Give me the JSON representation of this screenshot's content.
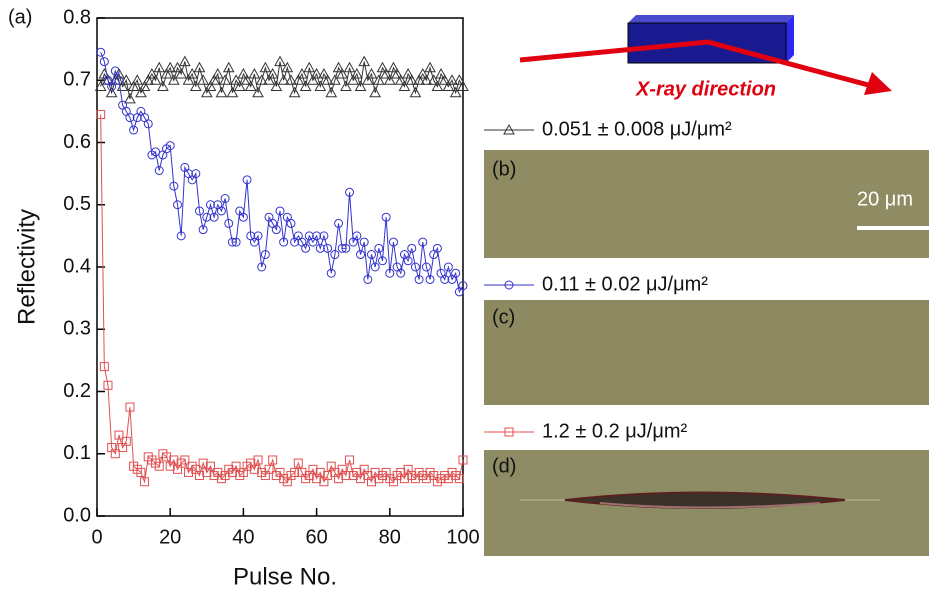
{
  "chart_data": {
    "type": "line",
    "title": "(a)",
    "xlabel": "Pulse No.",
    "ylabel": "Reflectivity",
    "xlim": [
      0,
      100
    ],
    "xticks": [
      0,
      20,
      40,
      60,
      80,
      100
    ],
    "ylim": [
      0,
      0.8
    ],
    "yticks": [
      {
        "value": 0,
        "label": "0.0"
      },
      0.1,
      0.2,
      0.3,
      0.4,
      0.5,
      0.6,
      0.7,
      0.8
    ],
    "annotation": "X-ray direction",
    "panel_labels": [
      "(b)",
      "(c)",
      "(d)"
    ],
    "scale_bar": "20 μm",
    "x": [
      1,
      2,
      3,
      4,
      5,
      6,
      7,
      8,
      9,
      10,
      11,
      12,
      13,
      14,
      15,
      16,
      17,
      18,
      19,
      20,
      21,
      22,
      23,
      24,
      25,
      26,
      27,
      28,
      29,
      30,
      31,
      32,
      33,
      34,
      35,
      36,
      37,
      38,
      39,
      40,
      41,
      42,
      43,
      44,
      45,
      46,
      47,
      48,
      49,
      50,
      51,
      52,
      53,
      54,
      55,
      56,
      57,
      58,
      59,
      60,
      61,
      62,
      63,
      64,
      65,
      66,
      67,
      68,
      69,
      70,
      71,
      72,
      73,
      74,
      75,
      76,
      77,
      78,
      79,
      80,
      81,
      82,
      83,
      84,
      85,
      86,
      87,
      88,
      89,
      90,
      91,
      92,
      93,
      94,
      95,
      96,
      97,
      98,
      99,
      100
    ],
    "series": [
      {
        "name": "0.051 ± 0.008 μJ/μm²",
        "color": "#333333",
        "marker": "triangle",
        "values": [
          0.69,
          0.71,
          0.7,
          0.68,
          0.7,
          0.71,
          0.69,
          0.7,
          0.67,
          0.69,
          0.7,
          0.68,
          0.69,
          0.7,
          0.71,
          0.7,
          0.72,
          0.69,
          0.71,
          0.72,
          0.7,
          0.72,
          0.71,
          0.73,
          0.7,
          0.71,
          0.69,
          0.72,
          0.7,
          0.68,
          0.69,
          0.7,
          0.71,
          0.68,
          0.7,
          0.72,
          0.68,
          0.7,
          0.69,
          0.71,
          0.7,
          0.69,
          0.71,
          0.68,
          0.7,
          0.72,
          0.7,
          0.71,
          0.69,
          0.73,
          0.7,
          0.72,
          0.7,
          0.68,
          0.7,
          0.71,
          0.69,
          0.72,
          0.7,
          0.71,
          0.69,
          0.71,
          0.7,
          0.68,
          0.7,
          0.72,
          0.71,
          0.69,
          0.72,
          0.7,
          0.71,
          0.69,
          0.73,
          0.7,
          0.71,
          0.68,
          0.7,
          0.72,
          0.71,
          0.7,
          0.72,
          0.71,
          0.7,
          0.69,
          0.71,
          0.7,
          0.68,
          0.7,
          0.71,
          0.7,
          0.72,
          0.7,
          0.69,
          0.71,
          0.7,
          0.69,
          0.7,
          0.68,
          0.7,
          0.69
        ]
      },
      {
        "name": "0.11 ± 0.02 μJ/μm²",
        "color": "#3333cc",
        "marker": "circle",
        "values": [
          0.745,
          0.73,
          0.7,
          0.69,
          0.715,
          0.7,
          0.66,
          0.65,
          0.64,
          0.62,
          0.64,
          0.65,
          0.64,
          0.63,
          0.58,
          0.585,
          0.555,
          0.58,
          0.59,
          0.595,
          0.53,
          0.5,
          0.45,
          0.56,
          0.55,
          0.54,
          0.55,
          0.49,
          0.46,
          0.48,
          0.5,
          0.48,
          0.5,
          0.49,
          0.51,
          0.47,
          0.44,
          0.44,
          0.49,
          0.48,
          0.54,
          0.45,
          0.44,
          0.45,
          0.4,
          0.42,
          0.48,
          0.47,
          0.46,
          0.49,
          0.44,
          0.48,
          0.47,
          0.44,
          0.45,
          0.44,
          0.43,
          0.45,
          0.44,
          0.45,
          0.43,
          0.45,
          0.43,
          0.39,
          0.42,
          0.47,
          0.43,
          0.43,
          0.52,
          0.44,
          0.45,
          0.42,
          0.44,
          0.38,
          0.42,
          0.4,
          0.43,
          0.41,
          0.48,
          0.39,
          0.44,
          0.4,
          0.39,
          0.42,
          0.41,
          0.43,
          0.4,
          0.38,
          0.44,
          0.4,
          0.38,
          0.42,
          0.43,
          0.39,
          0.38,
          0.4,
          0.38,
          0.39,
          0.36,
          0.37
        ]
      },
      {
        "name": "1.2 ± 0.2 μJ/μm²",
        "color": "#e05050",
        "marker": "square",
        "values": [
          0.645,
          0.24,
          0.21,
          0.11,
          0.1,
          0.13,
          0.11,
          0.12,
          0.175,
          0.08,
          0.075,
          0.07,
          0.055,
          0.095,
          0.09,
          0.085,
          0.08,
          0.1,
          0.095,
          0.08,
          0.09,
          0.075,
          0.085,
          0.09,
          0.07,
          0.08,
          0.075,
          0.065,
          0.085,
          0.07,
          0.08,
          0.065,
          0.07,
          0.06,
          0.065,
          0.075,
          0.07,
          0.08,
          0.065,
          0.07,
          0.08,
          0.085,
          0.075,
          0.09,
          0.07,
          0.065,
          0.075,
          0.09,
          0.065,
          0.07,
          0.06,
          0.055,
          0.065,
          0.07,
          0.085,
          0.07,
          0.06,
          0.065,
          0.075,
          0.06,
          0.07,
          0.055,
          0.065,
          0.08,
          0.07,
          0.06,
          0.075,
          0.065,
          0.09,
          0.065,
          0.07,
          0.06,
          0.075,
          0.065,
          0.055,
          0.07,
          0.06,
          0.065,
          0.07,
          0.06,
          0.055,
          0.065,
          0.07,
          0.06,
          0.075,
          0.065,
          0.06,
          0.07,
          0.065,
          0.06,
          0.07,
          0.065,
          0.055,
          0.06,
          0.065,
          0.06,
          0.07,
          0.065,
          0.06,
          0.09
        ]
      }
    ]
  }
}
